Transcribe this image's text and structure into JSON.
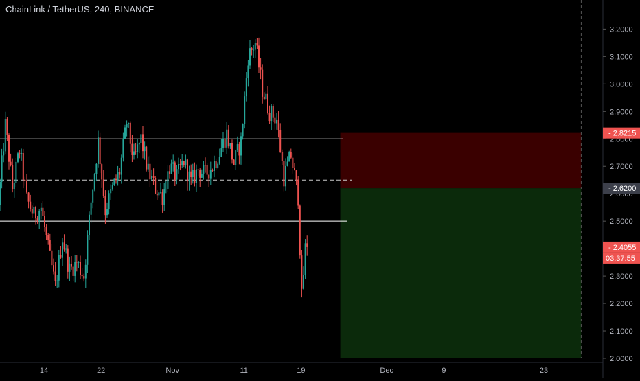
{
  "header": {
    "title": "ChainLink / TetherUS, 240, BINANCE"
  },
  "colors": {
    "background": "#000000",
    "up": "#26a69a",
    "down": "#ef5350",
    "axis_text": "#b2b5be",
    "stop_zone": "#3a0000",
    "target_zone": "#0b2a0b",
    "level_line": "#ffffff",
    "badge_red": "#ef5350",
    "badge_gray": "#3c3f4a"
  },
  "badges": {
    "stop": "2.8215",
    "entry": "2.6200",
    "last": "2.4055",
    "countdown": "03:37:55"
  },
  "chart_data": {
    "type": "candlestick",
    "symbol": "ChainLink / TetherUS",
    "interval": "240",
    "exchange": "BINANCE",
    "y_axis": {
      "ticks": [
        "2.0000",
        "2.1000",
        "2.2000",
        "2.3000",
        "2.4000",
        "2.5000",
        "2.6000",
        "2.7000",
        "2.8000",
        "2.9000",
        "3.0000",
        "3.1000",
        "3.2000"
      ],
      "range": [
        2.0,
        3.24
      ]
    },
    "x_axis": {
      "ticks": [
        {
          "label": "14",
          "day": 5
        },
        {
          "label": "22",
          "day": 13
        },
        {
          "label": "Nov",
          "day": 23
        },
        {
          "label": "11",
          "day": 33
        },
        {
          "label": "19",
          "day": 41
        },
        {
          "label": "Dec",
          "day": 53
        },
        {
          "label": "9",
          "day": 61
        },
        {
          "label": "23",
          "day": 75
        }
      ]
    },
    "price_path": [
      [
        0,
        2.56
      ],
      [
        1,
        2.85
      ],
      [
        2,
        2.62
      ],
      [
        3,
        2.76
      ],
      [
        4,
        2.58
      ],
      [
        5,
        2.52
      ],
      [
        6,
        2.55
      ],
      [
        7,
        2.4
      ],
      [
        8,
        2.26
      ],
      [
        9,
        2.44
      ],
      [
        10,
        2.32
      ],
      [
        11,
        2.35
      ],
      [
        12,
        2.3
      ],
      [
        13,
        2.57
      ],
      [
        14,
        2.79
      ],
      [
        15,
        2.54
      ],
      [
        16,
        2.62
      ],
      [
        17,
        2.68
      ],
      [
        18,
        2.86
      ],
      [
        19,
        2.72
      ],
      [
        20,
        2.8
      ],
      [
        21,
        2.68
      ],
      [
        22,
        2.62
      ],
      [
        23,
        2.59
      ],
      [
        24,
        2.7
      ],
      [
        25,
        2.66
      ],
      [
        26,
        2.72
      ],
      [
        27,
        2.64
      ],
      [
        28,
        2.69
      ],
      [
        29,
        2.67
      ],
      [
        30,
        2.7
      ],
      [
        31,
        2.75
      ],
      [
        32,
        2.82
      ],
      [
        33,
        2.71
      ],
      [
        34,
        2.79
      ],
      [
        35,
        3.1
      ],
      [
        36,
        3.15
      ],
      [
        37,
        2.98
      ],
      [
        38,
        2.9
      ],
      [
        39,
        2.87
      ],
      [
        40,
        2.66
      ],
      [
        41,
        2.74
      ],
      [
        42,
        2.59
      ],
      [
        42.5,
        2.22
      ],
      [
        43,
        2.4
      ]
    ],
    "levels": {
      "upper": 2.8,
      "mid": 2.65,
      "lower": 2.5
    },
    "position": {
      "stop": 2.8215,
      "entry": 2.62,
      "target": 2.0,
      "start_day": 44,
      "end_day": 76
    },
    "last_price": 2.4055
  }
}
